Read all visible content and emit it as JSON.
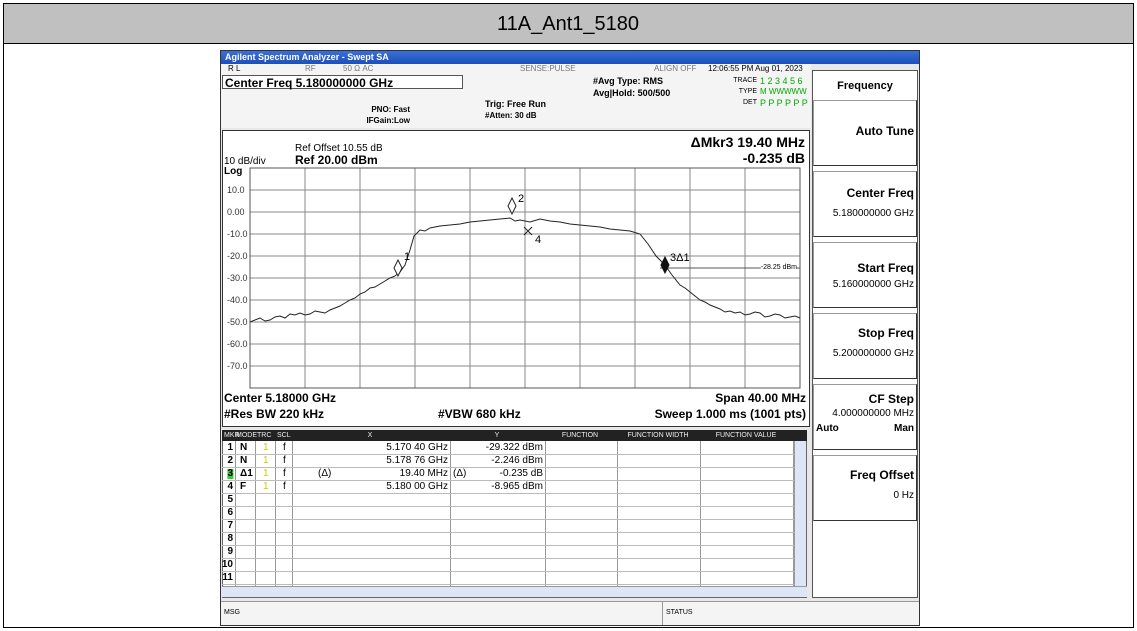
{
  "header": {
    "title": "11A_Ant1_5180"
  },
  "window": {
    "title": "Agilent Spectrum Analyzer - Swept SA"
  },
  "status_bar": {
    "rl": "R L",
    "rf": "RF",
    "impedance": "50 Ω  AC",
    "sense": "SENSE:PULSE",
    "align": "ALIGN OFF",
    "time": "12:06:55 PM Aug 01, 2023"
  },
  "setup": {
    "center_freq": "Center Freq 5.180000000 GHz",
    "pno": "PNO: Fast",
    "ifgain": "IFGain:Low",
    "trig": "Trig: Free Run",
    "atten": "#Atten: 30 dB",
    "avg_type": "#Avg Type: RMS",
    "avg_hold": "Avg|Hold: 500/500",
    "trace_label": "TRACE",
    "trace_numbers": "1 2 3 4 5 6",
    "type_label": "TYPE",
    "type_values": "M WWWWW",
    "det_label": "DET",
    "det_values": "P P P P P P"
  },
  "graph": {
    "ref_offset": "Ref Offset 10.55 dB",
    "scale": "10 dB/div",
    "ref_level": "Ref 20.00 dBm",
    "scale_type": "Log",
    "delta_marker": "ΔMkr3 19.40 MHz",
    "delta_value": "-0.235 dB",
    "y_labels": [
      "10.0",
      "0.00",
      "-10.0",
      "-20.0",
      "-30.0",
      "-40.0",
      "-50.0",
      "-60.0",
      "-70.0"
    ],
    "markers": [
      "1",
      "2",
      "3Δ1",
      "4"
    ],
    "threshold": "-28.25 dBm",
    "center": "Center 5.18000 GHz",
    "span": "Span 40.00 MHz",
    "rbw": "#Res BW 220 kHz",
    "vbw": "#VBW 680 kHz",
    "sweep": "Sweep  1.000 ms (1001 pts)"
  },
  "marker_table": {
    "columns": [
      "MKR",
      "MODE",
      "TRC",
      "SCL",
      "X",
      "Y",
      "FUNCTION",
      "FUNCTION WIDTH",
      "FUNCTION VALUE"
    ],
    "rows": [
      {
        "mkr": "1",
        "mode": "N",
        "trc": "1",
        "scl": "f",
        "x": "5.170 40 GHz",
        "y": "-29.322 dBm"
      },
      {
        "mkr": "2",
        "mode": "N",
        "trc": "1",
        "scl": "f",
        "x": "5.178 76 GHz",
        "y": "-2.246 dBm"
      },
      {
        "mkr": "3",
        "mode": "Δ1",
        "trc": "1",
        "scl": "f",
        "x_ref": "(Δ)",
        "x": "19.40 MHz",
        "y_ref": "(Δ)",
        "y": "-0.235 dB"
      },
      {
        "mkr": "4",
        "mode": "F",
        "trc": "1",
        "scl": "f",
        "x": "5.180 00 GHz",
        "y": "-8.965 dBm"
      },
      {
        "mkr": "5"
      },
      {
        "mkr": "6"
      },
      {
        "mkr": "7"
      },
      {
        "mkr": "8"
      },
      {
        "mkr": "9"
      },
      {
        "mkr": "10"
      },
      {
        "mkr": "11"
      }
    ]
  },
  "softkeys": {
    "menu": "Frequency",
    "items": [
      {
        "label": "Auto Tune"
      },
      {
        "label": "Center Freq",
        "value": "5.180000000 GHz"
      },
      {
        "label": "Start Freq",
        "value": "5.160000000 GHz"
      },
      {
        "label": "Stop Freq",
        "value": "5.200000000 GHz"
      },
      {
        "label": "CF Step",
        "value": "4.000000000 MHz",
        "options": [
          "Auto",
          "Man"
        ]
      },
      {
        "label": "Freq Offset",
        "value": "0 Hz"
      }
    ]
  },
  "footer": {
    "msg": "MSG",
    "status": "STATUS"
  }
}
